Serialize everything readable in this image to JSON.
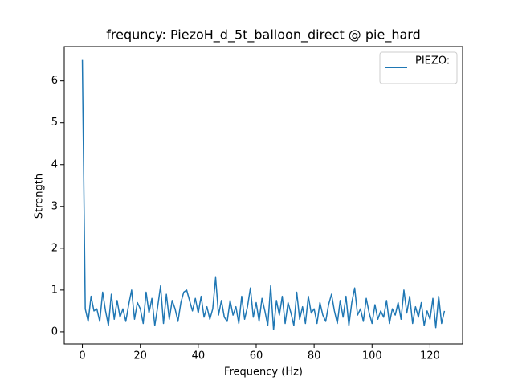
{
  "chart_data": {
    "type": "line",
    "title": "frequncy: PiezoH_d_5t_balloon_direct @ pie_hard",
    "x_label": "Frequency (Hz)",
    "y_label": "Strength",
    "x": [
      0,
      1,
      2,
      3,
      4,
      5,
      6,
      7,
      8,
      9,
      10,
      11,
      12,
      13,
      14,
      15,
      16,
      17,
      18,
      19,
      20,
      21,
      22,
      23,
      24,
      25,
      26,
      27,
      28,
      29,
      30,
      31,
      32,
      33,
      34,
      35,
      36,
      37,
      38,
      39,
      40,
      41,
      42,
      43,
      44,
      45,
      46,
      47,
      48,
      49,
      50,
      51,
      52,
      53,
      54,
      55,
      56,
      57,
      58,
      59,
      60,
      61,
      62,
      63,
      64,
      65,
      66,
      67,
      68,
      69,
      70,
      71,
      72,
      73,
      74,
      75,
      76,
      77,
      78,
      79,
      80,
      81,
      82,
      83,
      84,
      85,
      86,
      87,
      88,
      89,
      90,
      91,
      92,
      93,
      94,
      95,
      96,
      97,
      98,
      99,
      100,
      101,
      102,
      103,
      104,
      105,
      106,
      107,
      108,
      109,
      110,
      111,
      112,
      113,
      114,
      115,
      116,
      117,
      118,
      119,
      120,
      121,
      122,
      123,
      124,
      125
    ],
    "series": [
      {
        "name": "PIEZO:",
        "color": "#1f77b4",
        "values": [
          6.5,
          0.55,
          0.25,
          0.85,
          0.5,
          0.55,
          0.25,
          0.95,
          0.5,
          0.15,
          0.9,
          0.3,
          0.75,
          0.35,
          0.55,
          0.25,
          0.65,
          1.0,
          0.3,
          0.7,
          0.55,
          0.2,
          0.95,
          0.45,
          0.8,
          0.15,
          0.6,
          1.1,
          0.2,
          0.9,
          0.3,
          0.75,
          0.55,
          0.25,
          0.7,
          0.95,
          1.0,
          0.75,
          0.5,
          0.8,
          0.45,
          0.85,
          0.35,
          0.6,
          0.3,
          0.55,
          1.3,
          0.4,
          0.75,
          0.35,
          0.25,
          0.75,
          0.4,
          0.6,
          0.2,
          0.85,
          0.3,
          0.6,
          1.05,
          0.35,
          0.7,
          0.25,
          0.8,
          0.5,
          0.15,
          1.1,
          0.05,
          0.75,
          0.4,
          0.85,
          0.2,
          0.7,
          0.45,
          0.15,
          0.95,
          0.3,
          0.6,
          0.2,
          0.85,
          0.45,
          0.55,
          0.2,
          0.7,
          0.4,
          0.25,
          0.65,
          0.9,
          0.5,
          0.2,
          0.75,
          0.35,
          0.85,
          0.15,
          0.7,
          1.05,
          0.4,
          0.55,
          0.25,
          0.8,
          0.45,
          0.2,
          0.65,
          0.3,
          0.5,
          0.35,
          0.75,
          0.2,
          0.55,
          0.4,
          0.7,
          0.3,
          1.0,
          0.45,
          0.85,
          0.2,
          0.6,
          0.35,
          0.7,
          0.15,
          0.5,
          0.3,
          0.8,
          0.1,
          0.85,
          0.2,
          0.5
        ]
      }
    ],
    "xlim": [
      -6.25,
      131.25
    ],
    "ylim": [
      -0.29,
      6.82
    ],
    "xticks": [
      0,
      20,
      40,
      60,
      80,
      100,
      120
    ],
    "yticks": [
      0,
      1,
      2,
      3,
      4,
      5,
      6
    ],
    "legend": "upper right"
  }
}
